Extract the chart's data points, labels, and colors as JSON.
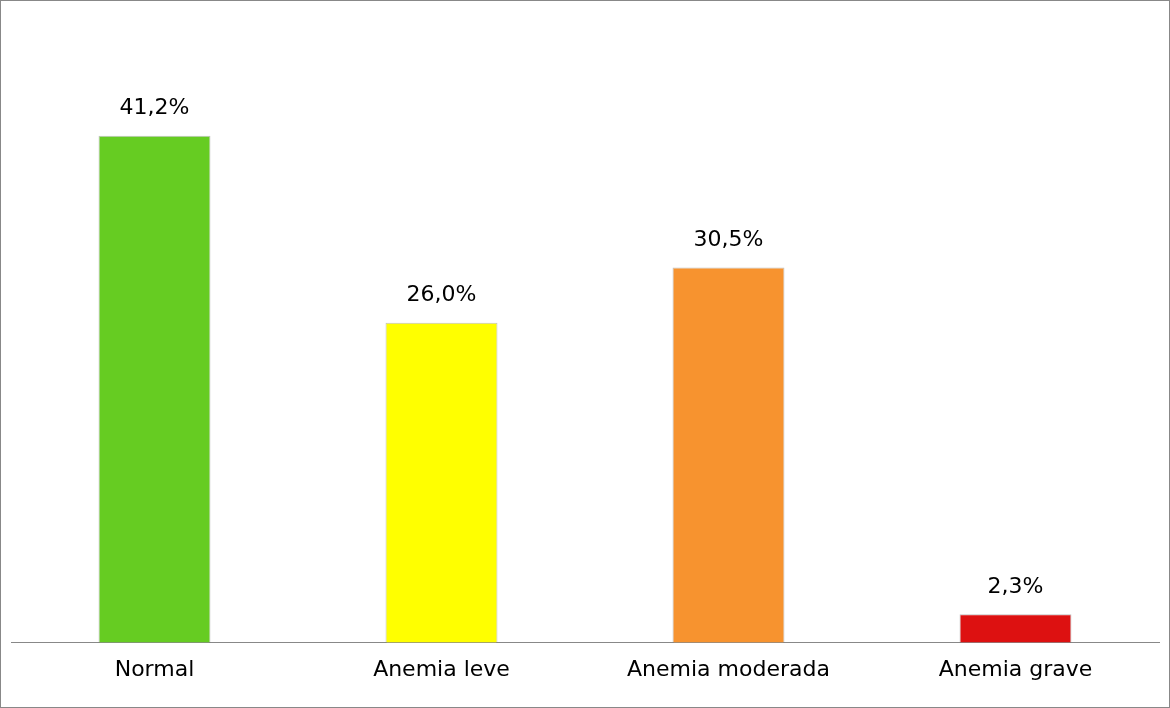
{
  "chart_data": {
    "type": "bar",
    "categories": [
      "Normal",
      "Anemia leve",
      "Anemia moderada",
      "Anemia grave"
    ],
    "values": [
      41.2,
      26.0,
      30.5,
      2.3
    ],
    "colors": [
      "#66cc22",
      "#ffff00",
      "#f7932f",
      "#dd1111"
    ],
    "value_labels": [
      "41,2%",
      "26,0%",
      "30,5%",
      "2,3%"
    ],
    "grid": false,
    "legend": false
  }
}
